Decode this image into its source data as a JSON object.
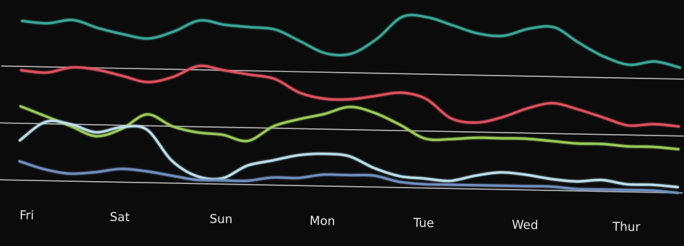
{
  "chart_data": {
    "type": "line",
    "title": "",
    "xlabel": "",
    "ylabel": "",
    "grid": false,
    "legend": "none",
    "categories": [
      "Fri",
      "Sat",
      "Sun",
      "Mon",
      "Tue",
      "Wed",
      "Thur"
    ],
    "x": [
      0,
      0.25,
      0.5,
      0.75,
      1.0,
      1.25,
      1.5,
      1.75,
      2.0,
      2.25,
      2.5,
      2.75,
      3.0,
      3.25,
      3.5,
      3.75,
      4.0,
      4.25,
      4.5,
      4.75,
      5.0,
      5.25,
      5.5,
      5.75,
      6.0,
      6.25,
      6.5
    ],
    "xlim": [
      -0.2,
      6.55
    ],
    "ylim": [
      0,
      100
    ],
    "baselines": [
      {
        "band": "upper",
        "y": 70
      },
      {
        "band": "middle",
        "y": 40
      },
      {
        "band": "lower",
        "y": 10
      }
    ],
    "series": [
      {
        "color": "#3aa897",
        "values": [
          94,
          93,
          95,
          91,
          88,
          86,
          90,
          96,
          94,
          93,
          92,
          86,
          80,
          80,
          88,
          100,
          100,
          96,
          92,
          91,
          95,
          96,
          88,
          81,
          77,
          79,
          76
        ]
      },
      {
        "color": "#e0515f",
        "values": [
          68,
          67,
          70,
          69,
          66,
          63,
          66,
          72,
          70,
          68,
          66,
          59,
          56,
          56,
          58,
          60,
          57,
          47,
          45,
          48,
          53,
          56,
          53,
          49,
          45,
          46,
          45
        ]
      },
      {
        "color": "#9ccc5a",
        "values": [
          49,
          44,
          39,
          34,
          38,
          46,
          40,
          37,
          36,
          33,
          41,
          45,
          48,
          52,
          49,
          43,
          36,
          36,
          37,
          37,
          37,
          36,
          35,
          35,
          34,
          34,
          33
        ]
      },
      {
        "color": "#bde0ec",
        "values": [
          31,
          41,
          40,
          36,
          39,
          38,
          22,
          14,
          13,
          20,
          23,
          26,
          27,
          26,
          20,
          16,
          15,
          14,
          17,
          19,
          18,
          16,
          15,
          16,
          14,
          14,
          13
        ]
      },
      {
        "color": "#6f8fbf",
        "values": [
          20,
          16,
          14,
          15,
          17,
          16,
          14,
          12,
          12,
          12,
          14,
          14,
          16,
          16,
          16,
          13,
          12,
          12,
          12,
          12,
          12,
          12,
          11,
          11,
          11,
          11,
          10
        ]
      }
    ]
  }
}
